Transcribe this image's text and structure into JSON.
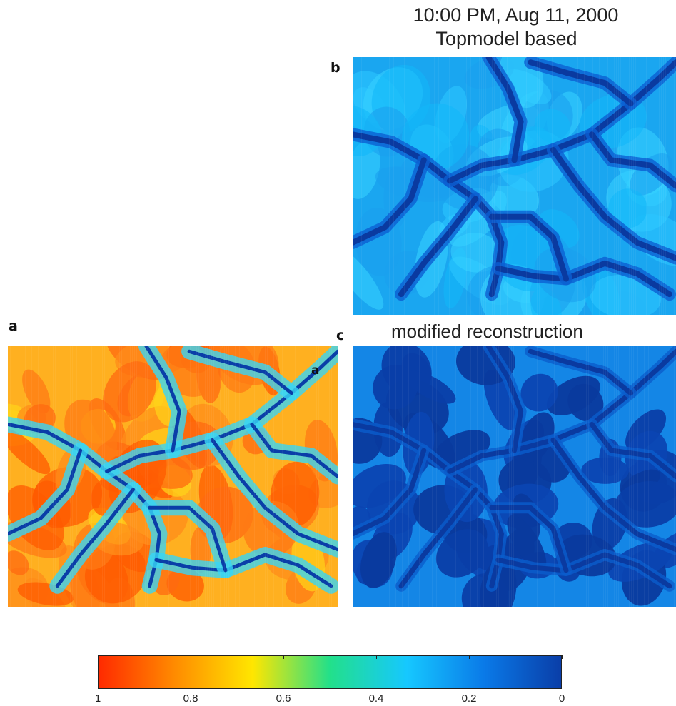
{
  "titles": {
    "top_line1": "10:00 PM, Aug 11, 2000",
    "top_line2": "Topmodel based",
    "c_title": "modified reconstruction"
  },
  "panels": [
    {
      "id": "a",
      "label": "a",
      "inset_label": "a",
      "colormap": "warm"
    },
    {
      "id": "b",
      "label": "b",
      "colormap": "cool"
    },
    {
      "id": "c",
      "label": "c",
      "colormap": "patchy"
    }
  ],
  "colorbar": {
    "direction": "reversed",
    "min": 0,
    "max": 1,
    "ticks": [
      "1",
      "0.8",
      "0.6",
      "0.4",
      "0.2",
      "0"
    ],
    "colors": [
      "#ff2a00",
      "#ff8c00",
      "#ffe600",
      "#22e08a",
      "#16c8ff",
      "#0a7ae8",
      "#0a3ea8"
    ]
  }
}
